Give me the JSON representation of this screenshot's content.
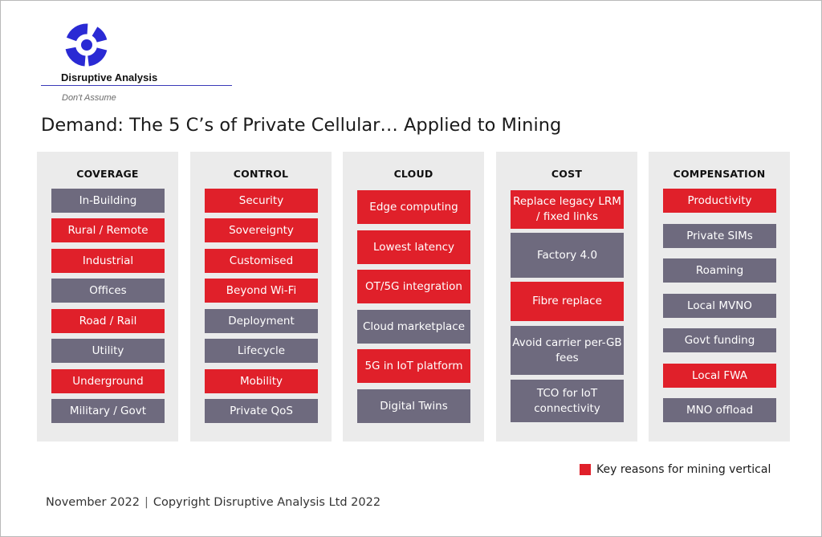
{
  "brand": {
    "name": "Disruptive Analysis",
    "tagline": "Don't Assume",
    "logo_icon": "ring-logo-icon"
  },
  "title": "Demand: The 5 C’s of Private Cellular… Applied to Mining",
  "colors": {
    "key": "#e0202a",
    "other": "#6e6a7e",
    "panel": "#ebebeb"
  },
  "columns": [
    {
      "heading": "COVERAGE",
      "items": [
        {
          "label": "In-Building",
          "key": false
        },
        {
          "label": "Rural / Remote",
          "key": true
        },
        {
          "label": "Industrial",
          "key": true
        },
        {
          "label": "Offices",
          "key": false
        },
        {
          "label": "Road / Rail",
          "key": true
        },
        {
          "label": "Utility",
          "key": false
        },
        {
          "label": "Underground",
          "key": true
        },
        {
          "label": "Military / Govt",
          "key": false
        }
      ]
    },
    {
      "heading": "CONTROL",
      "items": [
        {
          "label": "Security",
          "key": true
        },
        {
          "label": "Sovereignty",
          "key": true
        },
        {
          "label": "Customised",
          "key": true
        },
        {
          "label": "Beyond Wi-Fi",
          "key": true
        },
        {
          "label": "Deployment",
          "key": false
        },
        {
          "label": "Lifecycle",
          "key": false
        },
        {
          "label": "Mobility",
          "key": true
        },
        {
          "label": "Private QoS",
          "key": false
        }
      ]
    },
    {
      "heading": "CLOUD",
      "items": [
        {
          "label": "Edge computing",
          "key": true
        },
        {
          "label": "Lowest latency",
          "key": true
        },
        {
          "label": "OT/5G integration",
          "key": true
        },
        {
          "label": "Cloud marketplace",
          "key": false
        },
        {
          "label": "5G in IoT platform",
          "key": true
        },
        {
          "label": "Digital Twins",
          "key": false
        }
      ]
    },
    {
      "heading": "COST",
      "items": [
        {
          "label": "Replace legacy LRM / fixed links",
          "key": true
        },
        {
          "label": "Factory 4.0",
          "key": false
        },
        {
          "label": "Fibre replace",
          "key": true
        },
        {
          "label": "Avoid carrier per-GB fees",
          "key": false
        },
        {
          "label": "TCO for IoT connectivity",
          "key": false
        }
      ]
    },
    {
      "heading": "COMPENSATION",
      "items": [
        {
          "label": "Productivity",
          "key": true
        },
        {
          "label": "Private SIMs",
          "key": false
        },
        {
          "label": "Roaming",
          "key": false
        },
        {
          "label": "Local MVNO",
          "key": false
        },
        {
          "label": "Govt funding",
          "key": false
        },
        {
          "label": "Local FWA",
          "key": true
        },
        {
          "label": "MNO offload",
          "key": false
        }
      ]
    }
  ],
  "legend": {
    "label": "Key reasons for mining vertical"
  },
  "footer": {
    "date": "November 2022",
    "separator": "|",
    "copyright": "Copyright Disruptive Analysis Ltd 2022"
  }
}
